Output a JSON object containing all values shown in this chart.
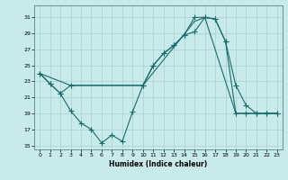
{
  "xlabel": "Humidex (Indice chaleur)",
  "bg_color": "#c8eaea",
  "grid_color": "#a8d0d0",
  "line_color": "#1a6b6b",
  "xlim": [
    -0.5,
    23.5
  ],
  "ylim": [
    14.5,
    32.5
  ],
  "yticks": [
    15,
    17,
    19,
    21,
    23,
    25,
    27,
    29,
    31
  ],
  "xticks": [
    0,
    1,
    2,
    3,
    4,
    5,
    6,
    7,
    8,
    9,
    10,
    11,
    12,
    13,
    14,
    15,
    16,
    17,
    18,
    19,
    20,
    21,
    22,
    23
  ],
  "line1_x": [
    0,
    1,
    2,
    3,
    4,
    5,
    6,
    7,
    8,
    9,
    10,
    11,
    12,
    13,
    14,
    15,
    16,
    17,
    18,
    19,
    20,
    21,
    22,
    23
  ],
  "line1_y": [
    24.0,
    22.7,
    21.5,
    19.3,
    17.8,
    17.0,
    15.3,
    16.3,
    15.5,
    19.2,
    22.5,
    25.0,
    26.5,
    27.5,
    28.8,
    31.0,
    31.0,
    30.8,
    28.0,
    19.0,
    19.0,
    19.0,
    19.0,
    19.0
  ],
  "line2_x": [
    0,
    1,
    2,
    3,
    10,
    11,
    12,
    13,
    14,
    15,
    16,
    17,
    18,
    19,
    20,
    21,
    22,
    23
  ],
  "line2_y": [
    24.0,
    22.7,
    21.5,
    22.5,
    22.5,
    25.0,
    26.5,
    27.5,
    28.8,
    29.2,
    31.0,
    30.8,
    28.0,
    22.5,
    20.0,
    19.0,
    19.0,
    19.0
  ],
  "line3_x": [
    0,
    3,
    9,
    10,
    15,
    16,
    19,
    23
  ],
  "line3_y": [
    24.0,
    22.5,
    22.5,
    22.5,
    30.5,
    31.0,
    19.0,
    19.0
  ]
}
